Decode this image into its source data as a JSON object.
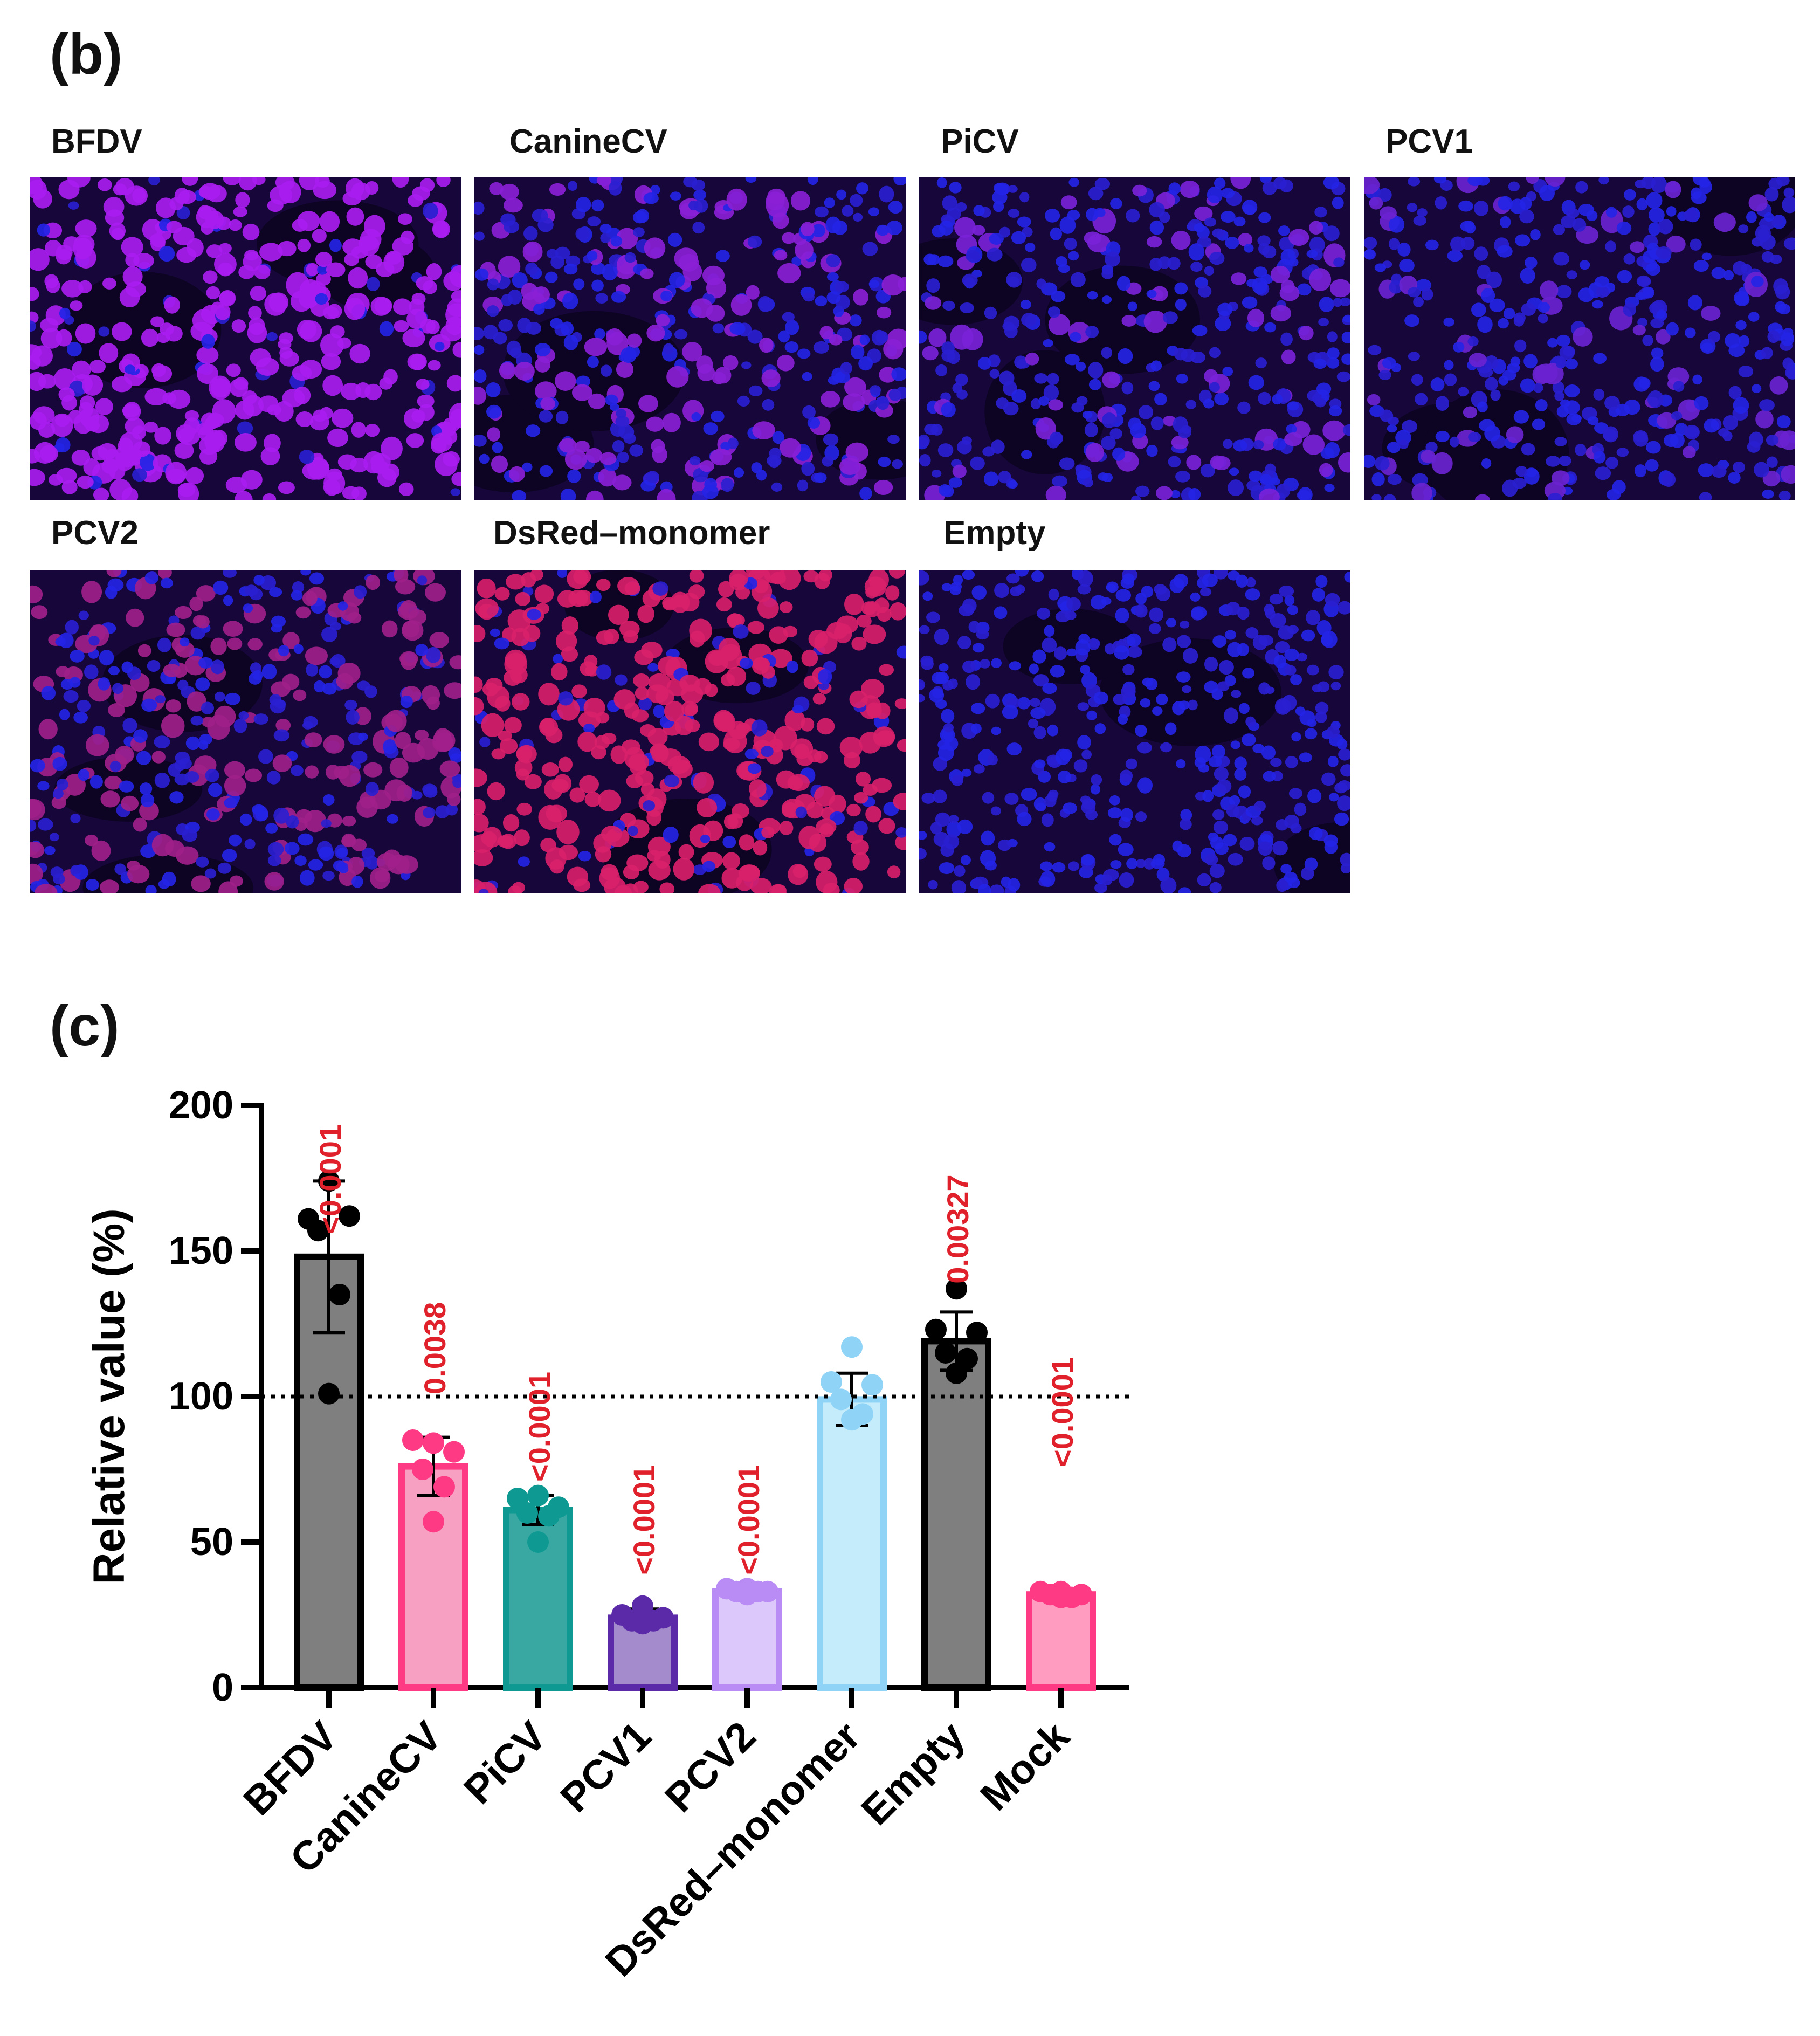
{
  "panel_b": {
    "label": "(b)",
    "images": [
      {
        "label": "BFDV",
        "red_level": 0.85,
        "cell_color": "#a91cf0"
      },
      {
        "label": "CanineCV",
        "red_level": 0.35,
        "cell_color": "#8a1fd6"
      },
      {
        "label": "PiCV",
        "red_level": 0.2,
        "cell_color": "#7a22d8"
      },
      {
        "label": "PCV1",
        "red_level": 0.12,
        "cell_color": "#6a23d0"
      },
      {
        "label": "PCV2",
        "red_level": 0.45,
        "cell_color": "#a0208a"
      },
      {
        "label": "DsRed–monomer",
        "red_level": 0.8,
        "cell_color": "#d8206a"
      },
      {
        "label": "Empty",
        "red_level": 0.0,
        "cell_color": "#1f24e8"
      }
    ]
  },
  "panel_c": {
    "label": "(c)"
  },
  "colors": {
    "gray": "#7f7f7f",
    "pink": "#ff3a85",
    "teal": "#0e9a92",
    "purple": "#5b2aa8",
    "lavender": "#b88cf4",
    "skyblue": "#8fd3f6",
    "annotation_red": "#e0202a"
  },
  "chart_data": {
    "type": "bar",
    "title": "",
    "ylabel": "Relative value (%)",
    "xlabel": "",
    "ylim": [
      0,
      200
    ],
    "yticks": [
      "0",
      "50",
      "100",
      "150",
      "200"
    ],
    "reference_line": 100,
    "categories": [
      "BFDV",
      "CanineCV",
      "PiCV",
      "PCV1",
      "PCV2",
      "DsRed–monomer",
      "Empty",
      "Mock"
    ],
    "values": [
      148,
      76,
      61,
      24,
      33,
      99,
      119,
      32
    ],
    "error": [
      26,
      10,
      5,
      3,
      2,
      9,
      10,
      1.5
    ],
    "points": [
      [
        174,
        161,
        162,
        157,
        135,
        101
      ],
      [
        84,
        85,
        81,
        75,
        69,
        57
      ],
      [
        66,
        65,
        62,
        60,
        59,
        50
      ],
      [
        28,
        25,
        24,
        23,
        23,
        22
      ],
      [
        34,
        34,
        33,
        33,
        33,
        32
      ],
      [
        117,
        105,
        104,
        99,
        94,
        92
      ],
      [
        137,
        123,
        122,
        115,
        113,
        108
      ],
      [
        33,
        33,
        32,
        32,
        31,
        31
      ]
    ],
    "annotations": [
      "<0.0001",
      "0.0038",
      "<0.0001",
      "<0.0001",
      "<0.0001",
      "",
      "0.00327",
      "<0.0001"
    ],
    "bar_fill": [
      "#7f7f7f",
      "#f7a0c2",
      "#3aa8a2",
      "#a48ccc",
      "#dcc8fa",
      "#c4ecfb",
      "#7f7f7f",
      "#ff9cc0"
    ],
    "bar_edge": [
      "#000000",
      "#ff3a85",
      "#0e9a92",
      "#5b2aa8",
      "#b88cf4",
      "#8fd3f6",
      "#000000",
      "#ff3a85"
    ],
    "point_color": [
      "#000000",
      "#ff3a85",
      "#0e9a92",
      "#5b2aa8",
      "#b88cf4",
      "#8fd3f6",
      "#000000",
      "#ff3a85"
    ]
  }
}
